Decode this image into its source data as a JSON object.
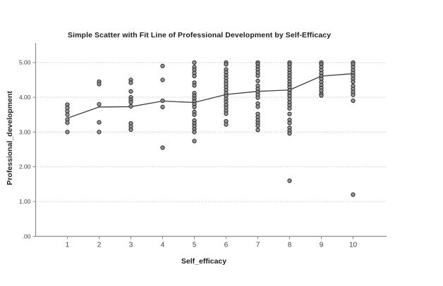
{
  "chart_data": {
    "type": "scatter",
    "title": "Simple Scatter with Fit Line of Professional Development by Self-Efficacy",
    "xlabel": "Self_efficacy",
    "ylabel": "Professional_development",
    "xlim": [
      0,
      11
    ],
    "ylim": [
      0.0,
      5.5
    ],
    "grid": "horizontal dotted gridlines at each y tick",
    "legend": "none",
    "x_ticks": [
      "1",
      "2",
      "3",
      "4",
      "5",
      "6",
      "7",
      "8",
      "9",
      "10"
    ],
    "y_ticks": [
      {
        "value": 5,
        "label": "5.00"
      },
      {
        "value": 4,
        "label": "4.00"
      },
      {
        "value": 3,
        "label": "3.00"
      },
      {
        "value": 2,
        "label": "2.00"
      },
      {
        "value": 1,
        "label": "1.00"
      },
      {
        "value": 0,
        "label": ".00"
      }
    ],
    "colors": {
      "marker_fill": "#8f8f8f",
      "marker_stroke": "#2e2e2e",
      "fit_line": "#3d3d3d",
      "axis": "#8a8a8a",
      "grid": "#cccccc",
      "tick_text": "#3f3f3f"
    },
    "series": [
      {
        "x": 1,
        "values": [
          3.79,
          3.7,
          3.6,
          3.5,
          3.36,
          3.27,
          3.0
        ]
      },
      {
        "x": 2,
        "values": [
          4.45,
          4.38,
          3.8,
          3.28,
          3.0
        ]
      },
      {
        "x": 3,
        "values": [
          4.5,
          4.42,
          4.17,
          4.0,
          3.93,
          3.86,
          3.74,
          3.25,
          3.16,
          3.07
        ]
      },
      {
        "x": 4,
        "values": [
          4.9,
          4.5,
          3.9,
          3.72,
          2.55
        ]
      },
      {
        "x": 5,
        "values": [
          5.0,
          4.87,
          4.79,
          4.7,
          4.61,
          4.42,
          4.34,
          4.12,
          4.04,
          3.96,
          3.88,
          3.8,
          3.72,
          3.58,
          3.5,
          3.33,
          3.25,
          3.17,
          3.08,
          3.0,
          2.74
        ]
      },
      {
        "x": 6,
        "values": [
          5.0,
          4.95,
          4.8,
          4.72,
          4.63,
          4.55,
          4.46,
          4.38,
          4.29,
          4.21,
          4.12,
          4.04,
          3.95,
          3.87,
          3.78,
          3.7,
          3.61,
          3.53,
          3.31,
          3.22
        ]
      },
      {
        "x": 7,
        "values": [
          5.0,
          4.96,
          4.88,
          4.8,
          4.71,
          4.62,
          4.47,
          4.33,
          4.24,
          4.15,
          4.07,
          3.99,
          3.82,
          3.73,
          3.52,
          3.43,
          3.34,
          3.26,
          3.18,
          3.06
        ]
      },
      {
        "x": 8,
        "values": [
          5.0,
          4.95,
          4.87,
          4.78,
          4.7,
          4.62,
          4.54,
          4.45,
          4.37,
          4.29,
          4.2,
          4.12,
          4.04,
          3.95,
          3.85,
          3.77,
          3.68,
          3.52,
          3.35,
          3.26,
          3.12,
          3.04,
          2.96,
          1.6
        ]
      },
      {
        "x": 9,
        "values": [
          5.0,
          4.95,
          4.87,
          4.78,
          4.69,
          4.61,
          4.53,
          4.44,
          4.35,
          4.27,
          4.19,
          4.1,
          4.05
        ]
      },
      {
        "x": 10,
        "values": [
          5.0,
          4.95,
          4.87,
          4.78,
          4.7,
          4.62,
          4.53,
          4.45,
          4.33,
          4.24,
          4.15,
          4.07,
          3.9,
          1.2
        ]
      }
    ],
    "fit_line": {
      "name": "fit-line",
      "points": [
        [
          1,
          3.4
        ],
        [
          2,
          3.72
        ],
        [
          3,
          3.73
        ],
        [
          4,
          3.89
        ],
        [
          5,
          3.85
        ],
        [
          6,
          4.08
        ],
        [
          7,
          4.17
        ],
        [
          8,
          4.21
        ],
        [
          9,
          4.61
        ],
        [
          10,
          4.68
        ]
      ]
    }
  }
}
